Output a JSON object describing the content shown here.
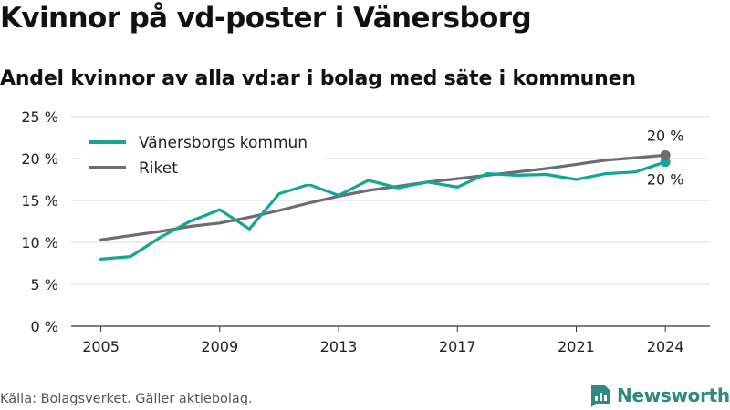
{
  "title": "Kvinnor på vd-poster i Vänersborg",
  "subtitle": "Andel kvinnor av alla vd:ar i bolag med säte i kommunen",
  "source": "Källa: Bolagsverket. Gäller aktiebolag.",
  "brand": {
    "name": "Newsworthy",
    "icon": "newsworthy-logo-icon",
    "color": "#2e8a7f"
  },
  "chart_data": {
    "type": "line",
    "ylim": [
      0,
      25
    ],
    "y_ticks": [
      0,
      5,
      10,
      15,
      20,
      25
    ],
    "y_tick_labels": [
      "0 %",
      "5 %",
      "10 %",
      "15 %",
      "20 %",
      "25 %"
    ],
    "x_ticks": [
      2005,
      2009,
      2013,
      2017,
      2021,
      2024
    ],
    "x_tick_labels": [
      "2005",
      "2009",
      "2013",
      "2017",
      "2021",
      "2024"
    ],
    "grid": true,
    "legend_position": "top-left",
    "x": [
      2005,
      2006,
      2007,
      2008,
      2009,
      2010,
      2011,
      2012,
      2013,
      2014,
      2015,
      2016,
      2017,
      2018,
      2019,
      2020,
      2021,
      2022,
      2023,
      2024
    ],
    "series": [
      {
        "name": "Vänersborgs kommun",
        "color": "#14a596",
        "values": [
          8.0,
          8.3,
          10.6,
          12.5,
          13.9,
          11.6,
          15.8,
          16.9,
          15.6,
          17.4,
          16.5,
          17.2,
          16.6,
          18.2,
          18.0,
          18.1,
          17.5,
          18.2,
          18.4,
          19.6
        ],
        "end_label": "20 %"
      },
      {
        "name": "Riket",
        "color": "#6e6c72",
        "values": [
          10.3,
          10.8,
          11.3,
          11.9,
          12.3,
          13.0,
          13.8,
          14.7,
          15.5,
          16.2,
          16.7,
          17.2,
          17.6,
          18.0,
          18.4,
          18.8,
          19.3,
          19.8,
          20.1,
          20.4
        ],
        "end_label": "20 %"
      }
    ]
  }
}
